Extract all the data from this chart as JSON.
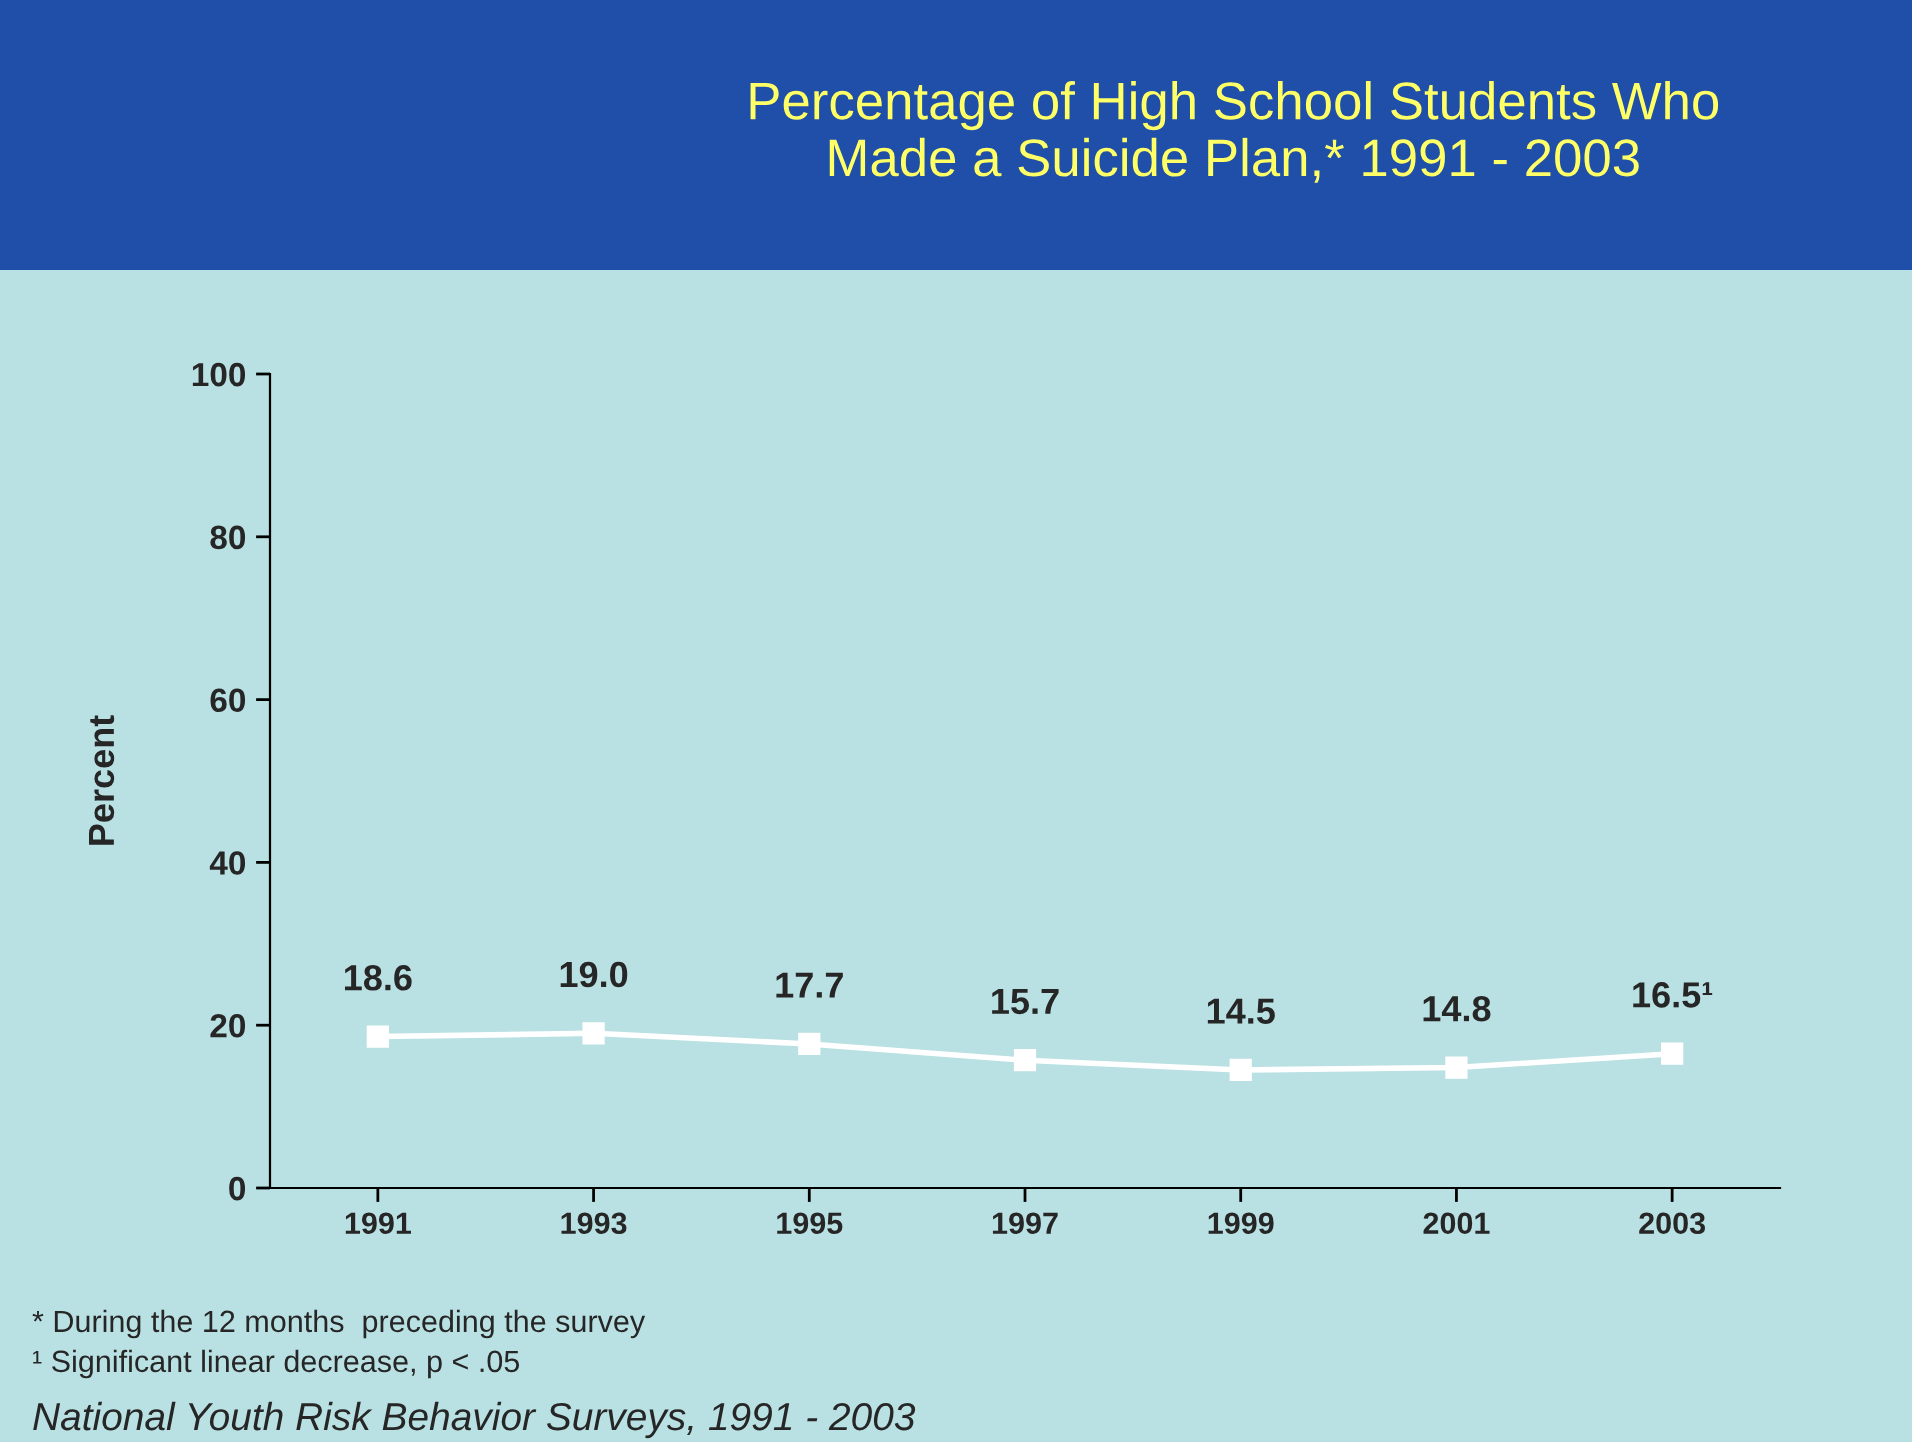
{
  "chart_data": {
    "type": "line",
    "title": "Percentage of High School Students Who\nMade a Suicide Plan,* 1991 - 2003",
    "ylabel": "Percent",
    "categories": [
      "1991",
      "1993",
      "1995",
      "1997",
      "1999",
      "2001",
      "2003"
    ],
    "series": [
      {
        "color": "#ffffff",
        "values": [
          18.6,
          19.0,
          17.7,
          15.7,
          14.5,
          14.8,
          16.5
        ]
      }
    ],
    "value_labels": [
      "18.6",
      "19.0",
      "17.7",
      "15.7",
      "14.5",
      "14.8",
      "16.5¹"
    ],
    "ylim": [
      0,
      100
    ],
    "yticks": [
      0,
      20,
      40,
      60,
      80,
      100
    ],
    "grid": false,
    "legend": false,
    "marker": "square",
    "line_style": "solid",
    "annotations": [
      "* During the 12 months  preceding the survey",
      "¹ Significant linear decrease, p < .05",
      "National Youth Risk Behavior Surveys, 1991 - 2003"
    ]
  }
}
